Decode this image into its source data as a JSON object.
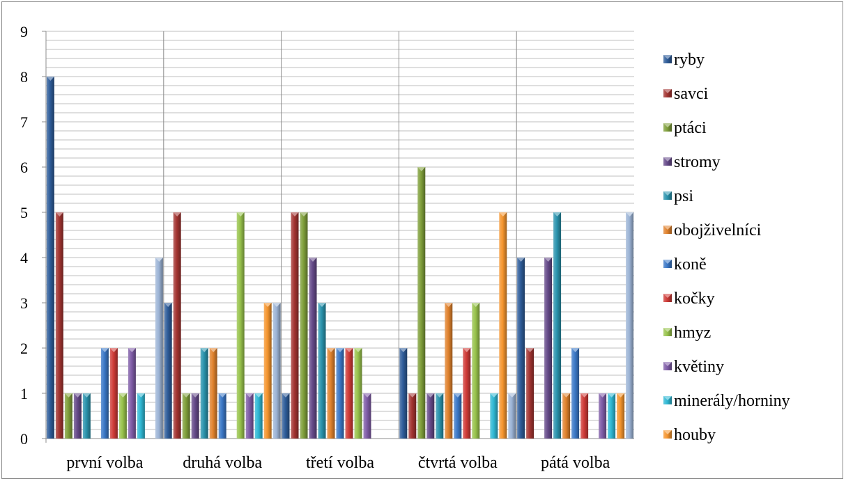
{
  "chart_data": {
    "type": "bar",
    "categories": [
      "první volba",
      "druhá volba",
      "třetí volba",
      "čtvrtá volba",
      "pátá volba"
    ],
    "ylim": [
      0,
      9
    ],
    "yticks": [
      0,
      1,
      2,
      3,
      4,
      5,
      6,
      7,
      8,
      9
    ],
    "minor_grid_step": 0.2,
    "grid": true,
    "legend_position": "right",
    "series": [
      {
        "name": "ryby",
        "color": "#2E5C99",
        "values": [
          8,
          3,
          1,
          2,
          4
        ]
      },
      {
        "name": "savci",
        "color": "#A33431",
        "values": [
          5,
          5,
          5,
          1,
          2
        ]
      },
      {
        "name": "ptáci",
        "color": "#7F9F3A",
        "values": [
          1,
          1,
          5,
          6,
          0
        ]
      },
      {
        "name": "stromy",
        "color": "#654A89",
        "values": [
          1,
          1,
          4,
          1,
          4
        ]
      },
      {
        "name": "psi",
        "color": "#2A93AD",
        "values": [
          1,
          2,
          3,
          1,
          5
        ]
      },
      {
        "name": "obojživelníci",
        "color": "#E0822D",
        "values": [
          0,
          2,
          2,
          3,
          1
        ]
      },
      {
        "name": "koně",
        "color": "#3B78C7",
        "values": [
          2,
          1,
          2,
          1,
          2
        ]
      },
      {
        "name": "kočky",
        "color": "#CF3B37",
        "values": [
          2,
          0,
          2,
          2,
          1
        ]
      },
      {
        "name": "hmyz",
        "color": "#98C34C",
        "values": [
          1,
          5,
          2,
          3,
          0
        ]
      },
      {
        "name": "květiny",
        "color": "#7F5CA7",
        "values": [
          2,
          1,
          1,
          0,
          1
        ]
      },
      {
        "name": "minerály/horniny",
        "color": "#2FB8D4",
        "values": [
          1,
          1,
          0,
          1,
          1
        ]
      },
      {
        "name": "houby",
        "color": "#F5952E",
        "values": [
          0,
          3,
          0,
          5,
          1
        ]
      },
      {
        "name": "",
        "color": "#9CB4D6",
        "values": [
          4,
          3,
          0,
          1,
          5
        ]
      }
    ]
  }
}
